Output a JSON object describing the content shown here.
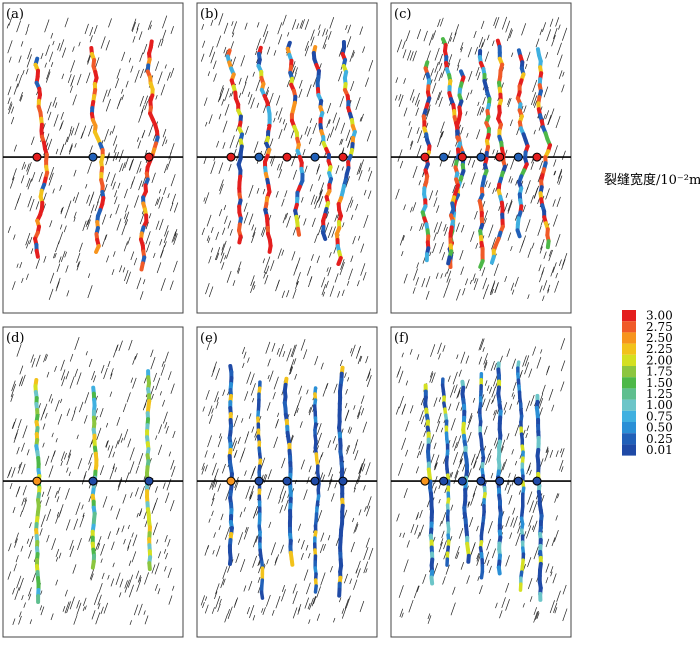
{
  "panels": [
    {
      "label": "(a)"
    },
    {
      "label": "(b)"
    },
    {
      "label": "(c)"
    },
    {
      "label": "(d)"
    },
    {
      "label": "(e)"
    },
    {
      "label": "(f)"
    }
  ],
  "colorbar": {
    "title": "裂缝宽度/10⁻²m",
    "labels": [
      "3.00",
      "2.75",
      "2.50",
      "2.25",
      "2.00",
      "1.75",
      "1.50",
      "1.25",
      "1.00",
      "0.75",
      "0.50",
      "0.25",
      "0.01"
    ],
    "colors": [
      "#e41e1e",
      "#f05a28",
      "#f7941d",
      "#f2c21b",
      "#d4e021",
      "#8cc63f",
      "#4db848",
      "#5fbf8f",
      "#6cc5c8",
      "#3fb0e0",
      "#2a8fd6",
      "#2160b8",
      "#1f4aa6"
    ]
  }
}
